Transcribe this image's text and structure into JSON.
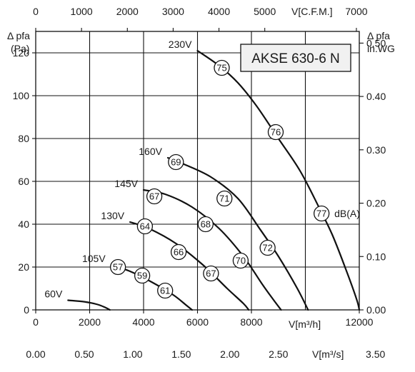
{
  "chart_data": {
    "type": "line",
    "title": "AKSE 630-6 N",
    "x_axis_bottom": {
      "label": "V[m³/h]",
      "range": [
        0,
        12000
      ],
      "ticks": [
        "0",
        "2000",
        "4000",
        "6000",
        "8000",
        "12000"
      ]
    },
    "x_axis_bottom2": {
      "label": "V[m³/s]",
      "range": [
        0,
        3.5
      ],
      "ticks": [
        "0.00",
        "0.50",
        "1.00",
        "1.50",
        "2.00",
        "2.50",
        "3.50"
      ]
    },
    "x_axis_top": {
      "label": "V[C.F.M.]",
      "range": [
        0,
        7000
      ],
      "ticks": [
        "0",
        "1000",
        "2000",
        "3000",
        "4000",
        "5000",
        "7000"
      ]
    },
    "y_axis_left": {
      "label_line1": "Δ pfa",
      "label_line2": "(Pa)",
      "range": [
        0,
        130
      ],
      "ticks": [
        "0",
        "20",
        "40",
        "60",
        "80",
        "100",
        "120"
      ]
    },
    "y_axis_right": {
      "label_line1": "Δ pfa",
      "label_line2": "in.WG",
      "range": [
        0,
        0.5
      ],
      "ticks": [
        "0.00",
        "0.10",
        "0.20",
        "0.30",
        "0.40",
        "0.50"
      ]
    },
    "grid": true,
    "noise_unit": "dB(A)",
    "series": [
      {
        "name": "230V",
        "points": [
          [
            6000,
            121
          ],
          [
            6800,
            114
          ],
          [
            7500,
            106
          ],
          [
            8200,
            95
          ],
          [
            9000,
            80
          ],
          [
            9800,
            65
          ],
          [
            10500,
            48
          ],
          [
            11000,
            35
          ],
          [
            11500,
            19
          ],
          [
            11900,
            5
          ],
          [
            12000,
            0
          ]
        ],
        "markers": [
          {
            "x": 6900,
            "y": 113,
            "label": "75"
          },
          {
            "x": 8900,
            "y": 83,
            "label": "76"
          },
          {
            "x": 10600,
            "y": 45,
            "label": "77"
          }
        ]
      },
      {
        "name": "160V",
        "points": [
          [
            4900,
            71
          ],
          [
            5500,
            68
          ],
          [
            6500,
            62
          ],
          [
            7500,
            52
          ],
          [
            8300,
            38
          ],
          [
            9000,
            25
          ],
          [
            9700,
            10
          ],
          [
            10100,
            0
          ]
        ],
        "markers": [
          {
            "x": 5200,
            "y": 69,
            "label": "69"
          },
          {
            "x": 7000,
            "y": 52,
            "label": "71"
          },
          {
            "x": 8600,
            "y": 29,
            "label": "72"
          }
        ]
      },
      {
        "name": "145V",
        "points": [
          [
            4000,
            56
          ],
          [
            4800,
            54
          ],
          [
            5800,
            48
          ],
          [
            6800,
            38
          ],
          [
            7700,
            25
          ],
          [
            8400,
            12
          ],
          [
            8800,
            5
          ],
          [
            9100,
            0
          ]
        ],
        "markers": [
          {
            "x": 4400,
            "y": 53,
            "label": "67"
          },
          {
            "x": 6300,
            "y": 40,
            "label": "68"
          },
          {
            "x": 7600,
            "y": 23,
            "label": "70"
          }
        ]
      },
      {
        "name": "130V",
        "points": [
          [
            3500,
            41
          ],
          [
            4200,
            38
          ],
          [
            5200,
            31
          ],
          [
            6200,
            21
          ],
          [
            7100,
            10
          ],
          [
            7700,
            3
          ],
          [
            7900,
            0
          ]
        ],
        "markers": [
          {
            "x": 4050,
            "y": 39,
            "label": "64"
          },
          {
            "x": 5300,
            "y": 27,
            "label": "66"
          },
          {
            "x": 6500,
            "y": 17,
            "label": "67"
          }
        ]
      },
      {
        "name": "105V",
        "points": [
          [
            2800,
            21
          ],
          [
            3500,
            18
          ],
          [
            4300,
            13
          ],
          [
            5100,
            7
          ],
          [
            5600,
            2
          ],
          [
            5800,
            0
          ]
        ],
        "markers": [
          {
            "x": 3050,
            "y": 20,
            "label": "57"
          },
          {
            "x": 3950,
            "y": 16,
            "label": "59"
          },
          {
            "x": 4800,
            "y": 9,
            "label": "61"
          }
        ]
      },
      {
        "name": "60V",
        "points": [
          [
            1200,
            4.5
          ],
          [
            1800,
            3.8
          ],
          [
            2300,
            2.5
          ],
          [
            2600,
            1
          ],
          [
            2750,
            0
          ]
        ],
        "markers": []
      }
    ]
  }
}
